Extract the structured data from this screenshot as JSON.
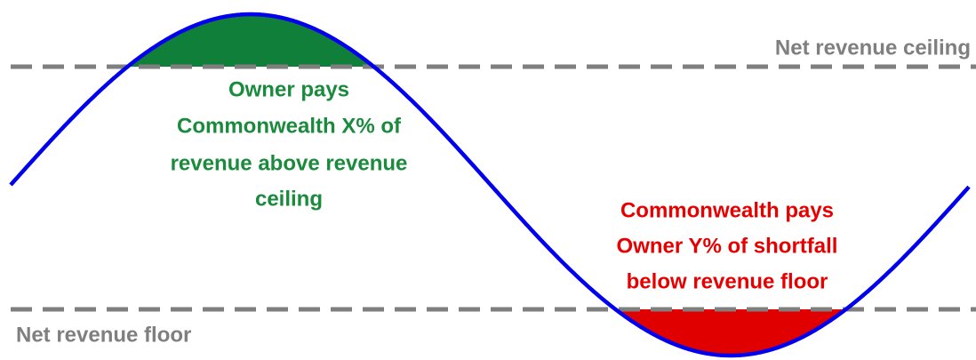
{
  "labels": {
    "ceiling": "Net revenue ceiling",
    "floor": "Net revenue floor"
  },
  "annotations": {
    "owner_pays": [
      "Owner pays",
      "Commonwealth X% of",
      "revenue above revenue",
      "ceiling"
    ],
    "commonwealth_pays": [
      "Commonwealth pays",
      "Owner Y% of shortfall",
      "below revenue floor"
    ]
  }
}
